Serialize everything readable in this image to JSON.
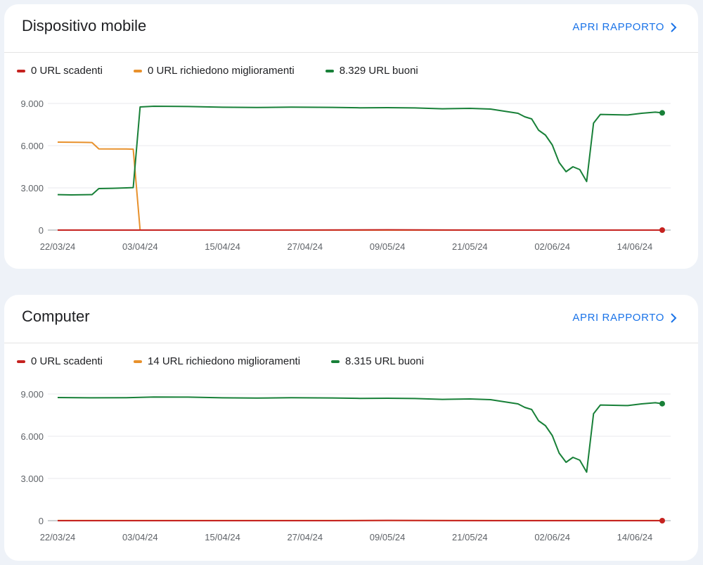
{
  "colors": {
    "poor": "#c5221f",
    "improve": "#e8912c",
    "good": "#188038",
    "accent": "#1a73e8"
  },
  "cards": [
    {
      "title": "Dispositivo mobile",
      "link_label": "APRI RAPPORTO",
      "legend": {
        "poor": "0 URL scadenti",
        "improve": "0 URL richiedono miglioramenti",
        "good": "8.329 URL buoni"
      }
    },
    {
      "title": "Computer",
      "link_label": "APRI RAPPORTO",
      "legend": {
        "poor": "0 URL scadenti",
        "improve": "14 URL richiedono miglioramenti",
        "good": "8.315 URL buoni"
      }
    }
  ],
  "chart_data": [
    {
      "type": "line",
      "x_ticks": [
        "22/03/24",
        "03/04/24",
        "15/04/24",
        "27/04/24",
        "09/05/24",
        "21/05/24",
        "02/06/24",
        "14/06/24"
      ],
      "y_ticks": [
        "9.000",
        "6.000",
        "3.000",
        "0"
      ],
      "ylim": [
        0,
        9000
      ],
      "x_start": "22/03/24",
      "x_end": "18/06/24",
      "grid": true,
      "legend_position": "top-left",
      "series": [
        {
          "key": "poor",
          "name": "0 URL scadenti",
          "points": [
            [
              "22/03/24",
              0
            ],
            [
              "20/04/24",
              0
            ],
            [
              "09/05/24",
              20
            ],
            [
              "25/05/24",
              0
            ],
            [
              "18/06/24",
              0
            ]
          ]
        },
        {
          "key": "improve",
          "name": "0 URL richiedono miglioramenti",
          "points": [
            [
              "22/03/24",
              6250
            ],
            [
              "25/03/24",
              6240
            ],
            [
              "26/03/24",
              6230
            ],
            [
              "27/03/24",
              6220
            ],
            [
              "28/03/24",
              5770
            ],
            [
              "01/04/24",
              5760
            ],
            [
              "02/04/24",
              5750
            ],
            [
              "03/04/24",
              0
            ],
            [
              "18/06/24",
              0
            ]
          ]
        },
        {
          "key": "good",
          "name": "8.329 URL buoni",
          "points": [
            [
              "22/03/24",
              2520
            ],
            [
              "24/03/24",
              2500
            ],
            [
              "27/03/24",
              2520
            ],
            [
              "28/03/24",
              2950
            ],
            [
              "30/03/24",
              2970
            ],
            [
              "01/04/24",
              3000
            ],
            [
              "02/04/24",
              3020
            ],
            [
              "03/04/24",
              8750
            ],
            [
              "05/04/24",
              8800
            ],
            [
              "10/04/24",
              8780
            ],
            [
              "15/04/24",
              8730
            ],
            [
              "20/04/24",
              8710
            ],
            [
              "25/04/24",
              8740
            ],
            [
              "01/05/24",
              8720
            ],
            [
              "05/05/24",
              8690
            ],
            [
              "09/05/24",
              8700
            ],
            [
              "13/05/24",
              8680
            ],
            [
              "17/05/24",
              8620
            ],
            [
              "21/05/24",
              8650
            ],
            [
              "24/05/24",
              8600
            ],
            [
              "26/05/24",
              8450
            ],
            [
              "28/05/24",
              8300
            ],
            [
              "29/05/24",
              8050
            ],
            [
              "30/05/24",
              7900
            ],
            [
              "31/05/24",
              7100
            ],
            [
              "01/06/24",
              6750
            ],
            [
              "02/06/24",
              6050
            ],
            [
              "03/06/24",
              4800
            ],
            [
              "04/06/24",
              4150
            ],
            [
              "05/06/24",
              4500
            ],
            [
              "06/06/24",
              4300
            ],
            [
              "07/06/24",
              3450
            ],
            [
              "08/06/24",
              7600
            ],
            [
              "09/06/24",
              8220
            ],
            [
              "13/06/24",
              8180
            ],
            [
              "15/06/24",
              8300
            ],
            [
              "17/06/24",
              8380
            ],
            [
              "18/06/24",
              8329
            ]
          ]
        }
      ]
    },
    {
      "type": "line",
      "x_ticks": [
        "22/03/24",
        "03/04/24",
        "15/04/24",
        "27/04/24",
        "09/05/24",
        "21/05/24",
        "02/06/24",
        "14/06/24"
      ],
      "y_ticks": [
        "9.000",
        "6.000",
        "3.000",
        "0"
      ],
      "ylim": [
        0,
        9000
      ],
      "x_start": "22/03/24",
      "x_end": "18/06/24",
      "grid": true,
      "legend_position": "top-left",
      "series": [
        {
          "key": "poor",
          "name": "0 URL scadenti",
          "points": [
            [
              "22/03/24",
              0
            ],
            [
              "01/05/24",
              0
            ],
            [
              "09/05/24",
              20
            ],
            [
              "25/05/24",
              0
            ],
            [
              "18/06/24",
              0
            ]
          ]
        },
        {
          "key": "improve",
          "name": "14 URL richiedono miglioramenti",
          "points": [
            [
              "22/03/24",
              14
            ],
            [
              "18/06/24",
              14
            ]
          ]
        },
        {
          "key": "good",
          "name": "8.315 URL buoni",
          "points": [
            [
              "22/03/24",
              8750
            ],
            [
              "27/03/24",
              8730
            ],
            [
              "01/04/24",
              8740
            ],
            [
              "05/04/24",
              8790
            ],
            [
              "10/04/24",
              8780
            ],
            [
              "15/04/24",
              8730
            ],
            [
              "20/04/24",
              8710
            ],
            [
              "25/04/24",
              8740
            ],
            [
              "01/05/24",
              8720
            ],
            [
              "05/05/24",
              8690
            ],
            [
              "09/05/24",
              8700
            ],
            [
              "13/05/24",
              8680
            ],
            [
              "17/05/24",
              8620
            ],
            [
              "21/05/24",
              8650
            ],
            [
              "24/05/24",
              8600
            ],
            [
              "26/05/24",
              8450
            ],
            [
              "28/05/24",
              8300
            ],
            [
              "29/05/24",
              8050
            ],
            [
              "30/05/24",
              7900
            ],
            [
              "31/05/24",
              7100
            ],
            [
              "01/06/24",
              6750
            ],
            [
              "02/06/24",
              6050
            ],
            [
              "03/06/24",
              4800
            ],
            [
              "04/06/24",
              4150
            ],
            [
              "05/06/24",
              4500
            ],
            [
              "06/06/24",
              4300
            ],
            [
              "07/06/24",
              3450
            ],
            [
              "08/06/24",
              7600
            ],
            [
              "09/06/24",
              8220
            ],
            [
              "13/06/24",
              8180
            ],
            [
              "15/06/24",
              8300
            ],
            [
              "17/06/24",
              8380
            ],
            [
              "18/06/24",
              8315
            ]
          ]
        }
      ]
    }
  ]
}
